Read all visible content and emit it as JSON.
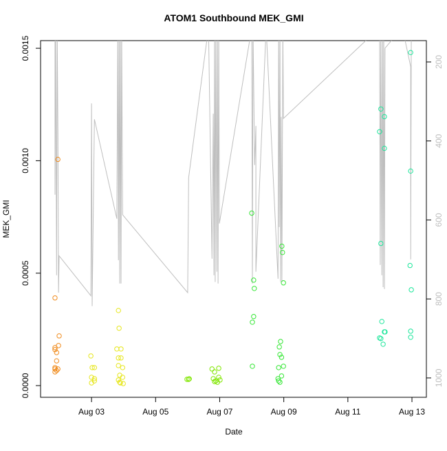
{
  "chart_data": {
    "type": "scatter",
    "title": "ATOM1 Southbound MEK_GMI",
    "x_label": "Date",
    "y_label": "MEK_GMI",
    "xlim": [
      1.41,
      13.45
    ],
    "xticks": [
      {
        "value": 3,
        "label": "Aug 03"
      },
      {
        "value": 5,
        "label": "Aug 05"
      },
      {
        "value": 7,
        "label": "Aug 07"
      },
      {
        "value": 9,
        "label": "Aug 09"
      },
      {
        "value": 11,
        "label": "Aug 11"
      },
      {
        "value": 13,
        "label": "Aug 13"
      }
    ],
    "ylim": [
      -5.2e-05,
      0.001534
    ],
    "yticks": [
      {
        "value": 0,
        "label": "0.0000"
      },
      {
        "value": 0.0005,
        "label": "0.0005"
      },
      {
        "value": 0.001,
        "label": "0.0010"
      },
      {
        "value": 0.0015,
        "label": "0.0015"
      }
    ],
    "y2lim": [
      1049,
      146
    ],
    "y2ticks": [
      200,
      400,
      600,
      800,
      1000
    ],
    "x": [
      1.95,
      1.86,
      1.99,
      1.97,
      1.86,
      1.86,
      1.91,
      1.91,
      1.86,
      1.86,
      1.91,
      1.95,
      1.86,
      2.98,
      3.02,
      3.09,
      3.0,
      3.09,
      3.0,
      3.09,
      3.84,
      3.86,
      3.79,
      3.92,
      3.84,
      3.92,
      3.84,
      3.97,
      3.88,
      3.97,
      3.84,
      3.9,
      3.99,
      3.88,
      5.98,
      6.05,
      6.03,
      6.76,
      6.84,
      6.97,
      6.8,
      6.88,
      6.97,
      7.01,
      6.84,
      6.93,
      8.0,
      8.06,
      8.08,
      8.06,
      8.02,
      8.02,
      8.94,
      8.96,
      8.99,
      8.9,
      8.86,
      8.88,
      8.93,
      8.84,
      8.93,
      8.99,
      8.82,
      8.84,
      8.88,
      12.03,
      12.14,
      11.99,
      12.14,
      12.03,
      12.06,
      11.99,
      12.03,
      12.1,
      12.14,
      12.16,
      12.96,
      12.96,
      12.94,
      12.98,
      12.96,
      12.96
    ],
    "values": [
      0.001006,
      0.00039,
      0.000221,
      0.000178,
      0.000169,
      0.00016,
      0.000147,
      0.00011,
      8e-05,
      7.4e-05,
      6.7e-05,
      7.4e-05,
      6.1e-05,
      0.000132,
      8e-05,
      8e-05,
      3.7e-05,
      3.1e-05,
      1.2e-05,
      2.1e-05,
      0.000334,
      0.000255,
      0.000163,
      0.000163,
      0.000123,
      0.000123,
      8.9e-05,
      8e-05,
      4.6e-05,
      3.7e-05,
      2.5e-05,
      1.2e-05,
      9e-06,
      1.5e-05,
      2.8e-05,
      3e-05,
      2.8e-05,
      7.4e-05,
      6.1e-05,
      7.7e-05,
      3.1e-05,
      2.1e-05,
      3.7e-05,
      2.5e-05,
      1.8e-05,
      1.5e-05,
      0.000767,
      0.000469,
      0.000432,
      0.000307,
      0.000282,
      8.6e-05,
      0.00062,
      0.000592,
      0.000457,
      0.000196,
      0.000172,
      0.000138,
      0.000126,
      8e-05,
      4.3e-05,
      8.6e-05,
      3.1e-05,
      2.1e-05,
      1.5e-05,
      0.00123,
      0.001196,
      0.001129,
      0.001055,
      0.000632,
      0.000285,
      0.000212,
      0.000209,
      0.000184,
      0.000239,
      0.000239,
      0.001481,
      0.000954,
      0.000534,
      0.000426,
      0.000242,
      0.000215
    ],
    "colors": [
      "#f08c1e",
      "#f08c1e",
      "#f08c1e",
      "#f08c1e",
      "#f08c1e",
      "#f08c1e",
      "#f08c1e",
      "#f08c1e",
      "#f08c1e",
      "#f08c1e",
      "#f08c1e",
      "#f08c1e",
      "#f08c1e",
      "#e6e61a",
      "#e6e61a",
      "#e6e61a",
      "#e6e61a",
      "#e6e61a",
      "#e6e61a",
      "#e6e61a",
      "#e6e61a",
      "#e6e61a",
      "#e6e61a",
      "#e6e61a",
      "#e6e61a",
      "#e6e61a",
      "#e6e61a",
      "#e6e61a",
      "#e6e61a",
      "#e6e61a",
      "#e6e61a",
      "#e6e61a",
      "#e6e61a",
      "#e6e61a",
      "#80e600",
      "#80e600",
      "#80e600",
      "#80e600",
      "#80e600",
      "#80e600",
      "#80e600",
      "#80e600",
      "#80e600",
      "#80e600",
      "#80e600",
      "#80e600",
      "#33e633",
      "#33e633",
      "#33e633",
      "#33e633",
      "#33e633",
      "#33e633",
      "#33e633",
      "#33e633",
      "#33e633",
      "#33e633",
      "#33e633",
      "#33e633",
      "#33e633",
      "#33e633",
      "#33e633",
      "#33e633",
      "#33e633",
      "#33e633",
      "#33e633",
      "#1ae69a",
      "#1ae69a",
      "#1ae69a",
      "#1ae69a",
      "#1ae69a",
      "#1ae69a",
      "#1ae69a",
      "#1ae69a",
      "#1ae69a",
      "#1ae69a",
      "#1ae69a",
      "#1ae69a",
      "#1ae69a",
      "#1ae69a",
      "#1ae69a",
      "#1ae69a",
      "#1ae69a"
    ],
    "line": {
      "axis": "y2",
      "color": "#bebebe",
      "x": [
        1.86,
        1.86,
        1.88,
        1.91,
        1.93,
        1.95,
        1.97,
        1.99,
        2.98,
        3.0,
        3.02,
        3.09,
        3.79,
        3.82,
        3.84,
        3.86,
        3.88,
        3.9,
        3.92,
        3.94,
        3.97,
        6.0,
        6.03,
        6.65,
        6.76,
        6.8,
        6.82,
        6.84,
        6.86,
        6.88,
        6.91,
        6.93,
        6.95,
        6.97,
        6.99,
        8.0,
        8.02,
        8.04,
        8.09,
        8.13,
        8.13,
        8.45,
        8.82,
        8.84,
        8.86,
        8.88,
        8.9,
        8.92,
        8.94,
        8.97,
        8.99,
        11.99,
        12.01,
        12.03,
        12.06,
        12.08,
        12.1,
        12.12,
        12.14,
        12.16,
        12.7,
        12.96,
        12.96,
        12.98
      ],
      "values": [
        113,
        536,
        113,
        740,
        113,
        374,
        784,
        691,
        792,
        305,
        818,
        345,
        597,
        113,
        702,
        113,
        761,
        113,
        761,
        113,
        587,
        784,
        493,
        113,
        698,
        331,
        740,
        113,
        757,
        113,
        731,
        113,
        761,
        113,
        609,
        113,
        761,
        113,
        461,
        362,
        731,
        113,
        749,
        113,
        618,
        113,
        757,
        339,
        757,
        113,
        343,
        113,
        714,
        113,
        740,
        113,
        770,
        113,
        775,
        165,
        113,
        212,
        700,
        113
      ]
    }
  }
}
